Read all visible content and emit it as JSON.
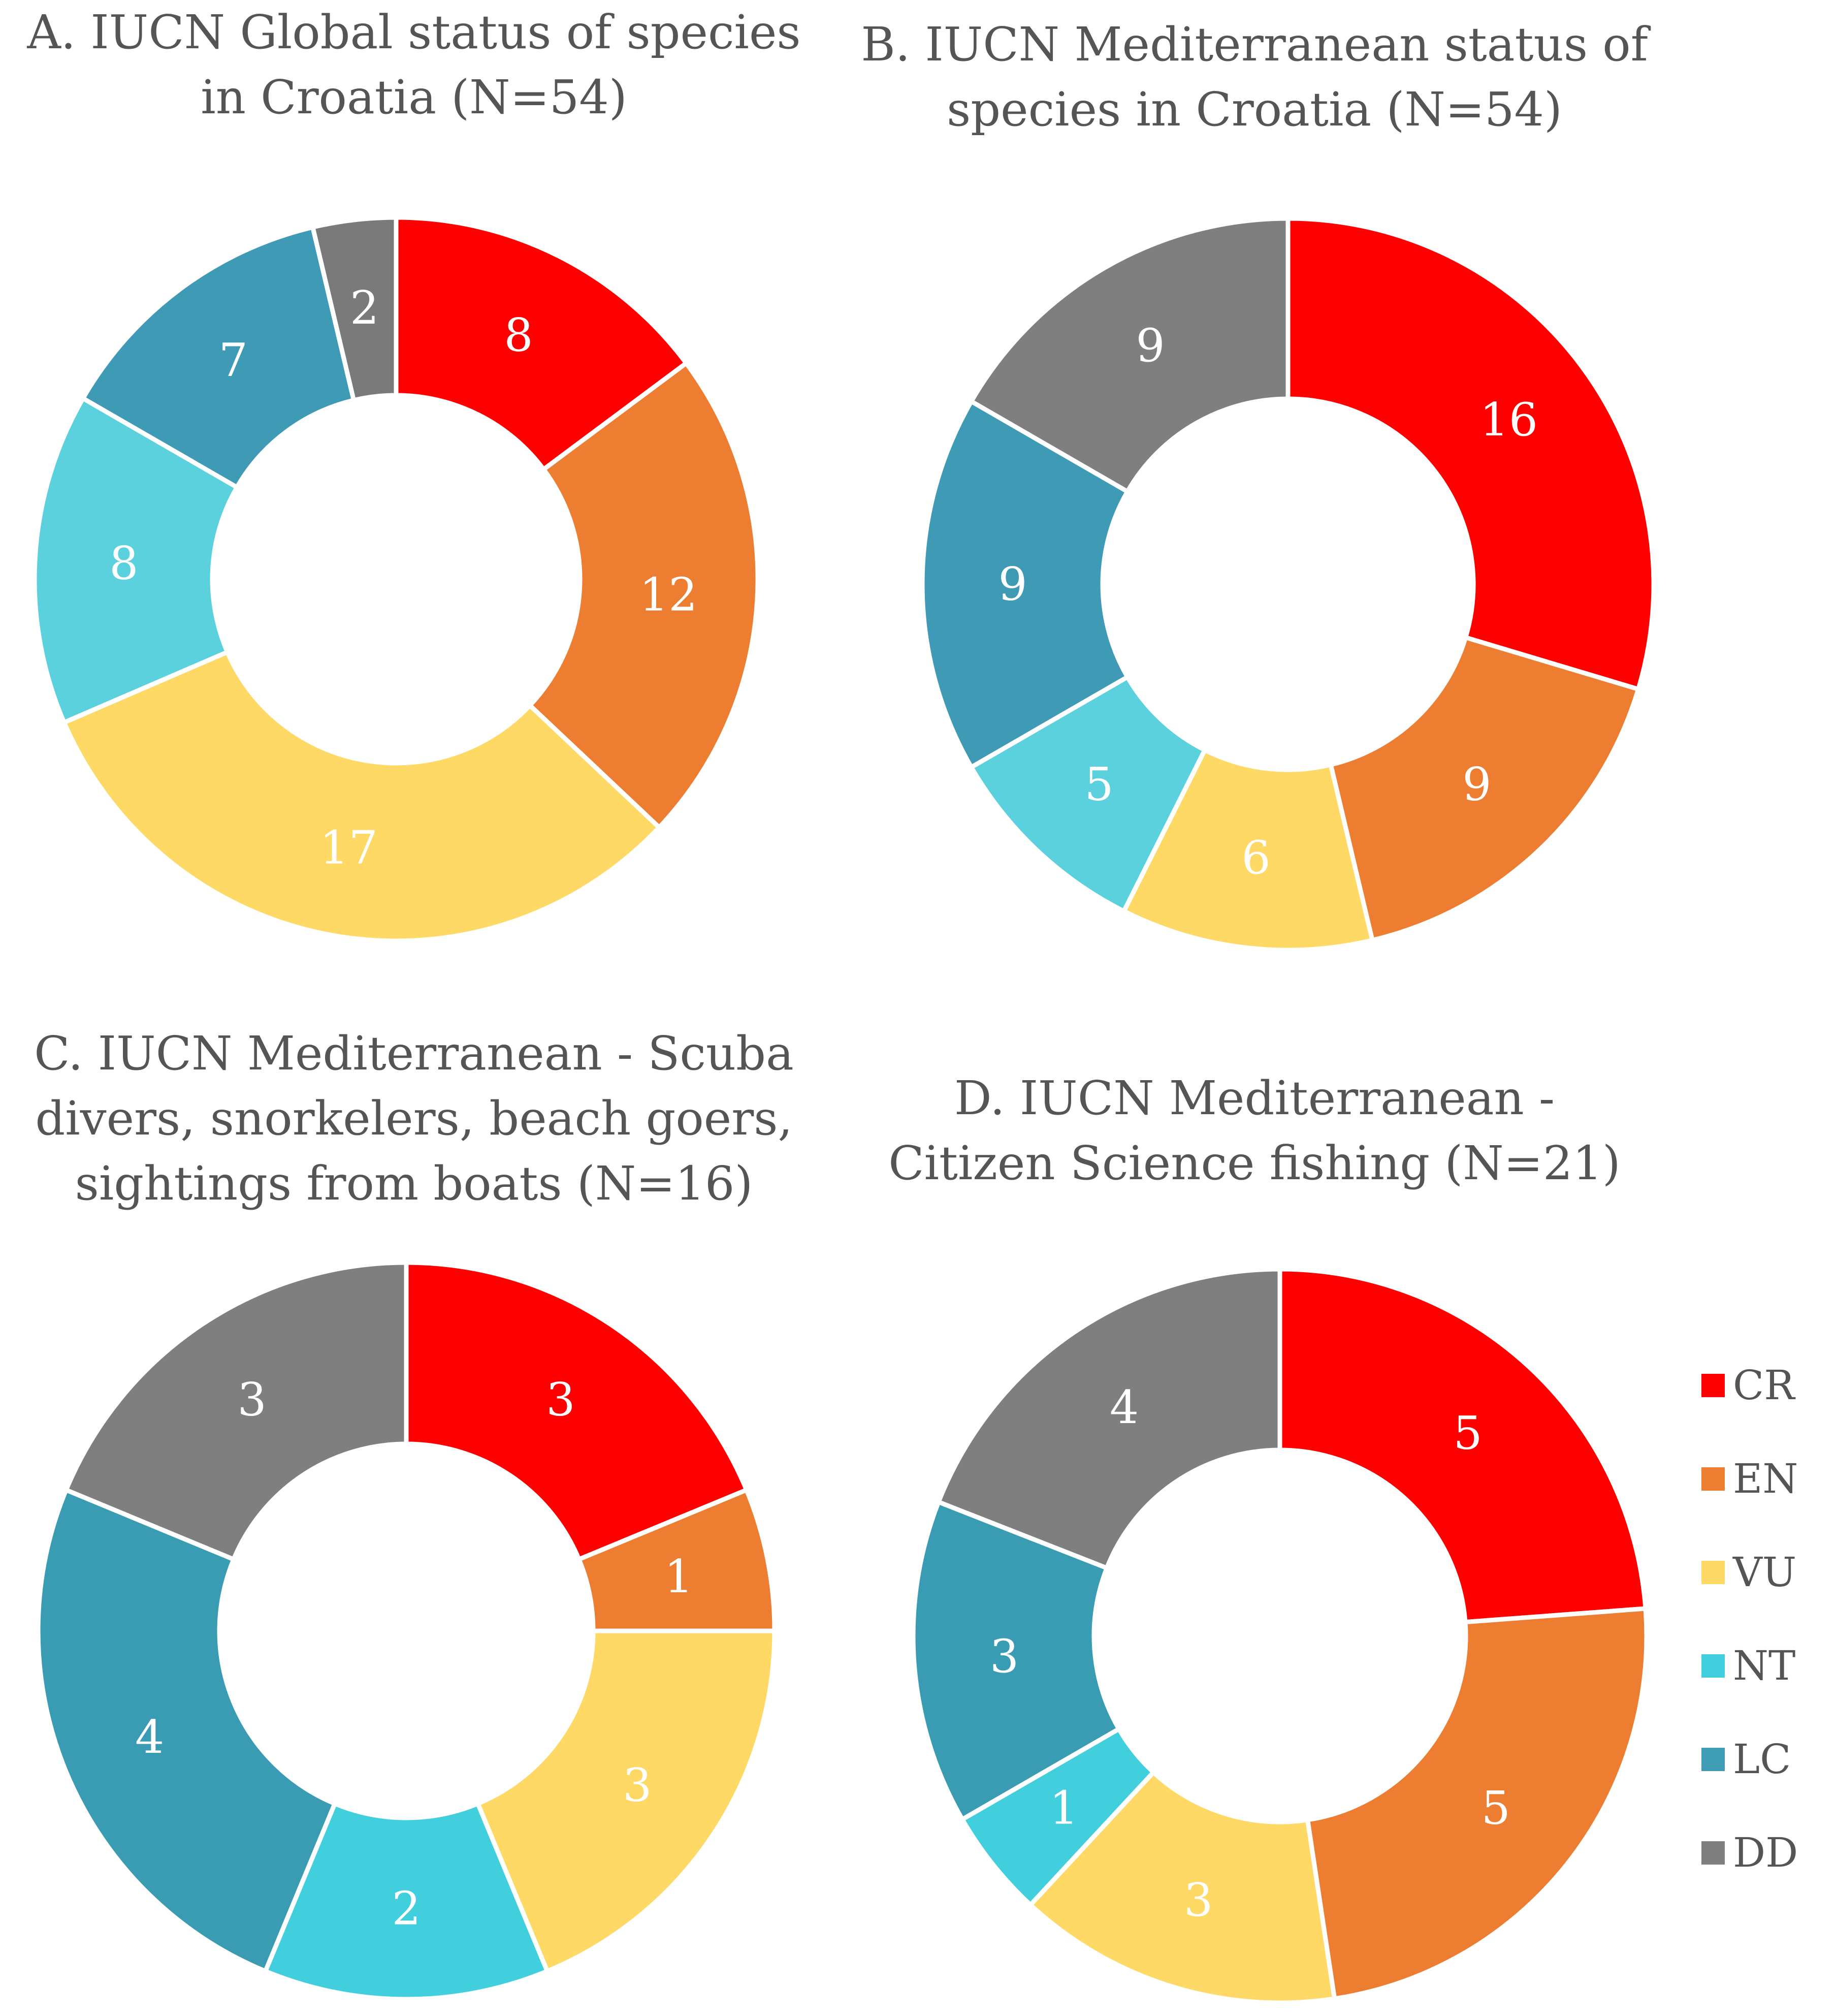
{
  "legend": [
    {
      "code": "CR",
      "color": "#ff0000"
    },
    {
      "code": "EN",
      "color": "#ed7d31"
    },
    {
      "code": "VU",
      "color": "#ffd966"
    },
    {
      "code": "NT",
      "color": "#41cfde"
    },
    {
      "code": "LC",
      "color": "#3e9db4"
    },
    {
      "code": "DD",
      "color": "#7f7f7f"
    }
  ],
  "chart_data": [
    {
      "type": "pie",
      "title_lines": [
        "A. IUCN Global status of species",
        "in Croatia (N=54)"
      ],
      "categories": [
        "CR",
        "EN",
        "VU",
        "NT",
        "LC",
        "DD"
      ],
      "values": [
        8,
        12,
        17,
        8,
        7,
        2
      ],
      "colors": [
        "#ff0000",
        "#ed7d31",
        "#ffd966",
        "#5ad1dd",
        "#3f9ab5",
        "#7a7a7a"
      ]
    },
    {
      "type": "pie",
      "title_lines": [
        "B. IUCN Mediterranean status of",
        "species in Croatia (N=54)"
      ],
      "categories": [
        "CR",
        "EN",
        "VU",
        "NT",
        "LC",
        "DD"
      ],
      "values": [
        16,
        9,
        6,
        5,
        9,
        9
      ],
      "colors": [
        "#ff0000",
        "#ed7d31",
        "#ffd966",
        "#5ad1dd",
        "#3f9ab5",
        "#7f7f7f"
      ]
    },
    {
      "type": "pie",
      "title_lines": [
        "C. IUCN Mediterranean - Scuba",
        "divers, snorkelers, beach goers,",
        "sightings from boats (N=16)"
      ],
      "categories": [
        "CR",
        "EN",
        "VU",
        "NT",
        "LC",
        "DD"
      ],
      "values": [
        3,
        1,
        3,
        2,
        4,
        3
      ],
      "colors": [
        "#ff0000",
        "#ed7d31",
        "#ffd966",
        "#41cfde",
        "#3a9cb2",
        "#7f7f7f"
      ]
    },
    {
      "type": "pie",
      "title_lines": [
        "D. IUCN Mediterranean -",
        "Citizen Science fishing (N=21)"
      ],
      "categories": [
        "CR",
        "EN",
        "VU",
        "NT",
        "LC",
        "DD"
      ],
      "values": [
        5,
        5,
        3,
        1,
        3,
        4
      ],
      "colors": [
        "#ff0000",
        "#ed7d31",
        "#ffd966",
        "#41cfde",
        "#3a9cb2",
        "#7f7f7f"
      ]
    }
  ]
}
